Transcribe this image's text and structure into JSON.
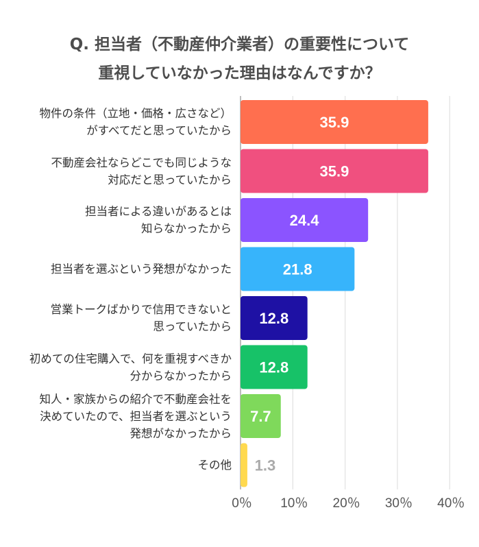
{
  "title_lines": [
    "Q. 担当者（不動産仲介業者）の重要性について",
    "重視していなかった理由はなんですか？"
  ],
  "chart_data": {
    "type": "bar",
    "orientation": "horizontal",
    "title": "Q. 担当者（不動産仲介業者）の重要性について重視していなかった理由はなんですか？",
    "categories": [
      [
        "物件の条件（立地・価格・広さなど）",
        "がすべてだと思っていたから"
      ],
      [
        "不動産会社ならどこでも同じような",
        "対応だと思っていたから"
      ],
      [
        "担当者による違いがあるとは",
        "知らなかったから"
      ],
      [
        "担当者を選ぶという発想がなかった"
      ],
      [
        "営業トークばかりで信用できないと",
        "思っていたから"
      ],
      [
        "初めての住宅購入で、何を重視すべきか",
        "分からなかったから"
      ],
      [
        "知人・家族からの紹介で不動産会社を",
        "決めていたので、担当者を選ぶという",
        "発想がなかったから"
      ],
      [
        "その他"
      ]
    ],
    "values": [
      35.9,
      35.9,
      24.4,
      21.8,
      12.8,
      12.8,
      7.7,
      1.3
    ],
    "value_labels": [
      "35.9",
      "35.9",
      "24.4",
      "21.8",
      "12.8",
      "12.8",
      "7.7",
      "1.3"
    ],
    "colors": [
      "#ff6f4f",
      "#f0507f",
      "#8b54ff",
      "#37b4fb",
      "#1e11a4",
      "#17c268",
      "#7fd95b",
      "#ffd94f"
    ],
    "xlim": [
      0,
      40
    ],
    "ticks": [
      0,
      10,
      20,
      30,
      40
    ],
    "tick_labels": [
      "0％",
      "10％",
      "20％",
      "30％",
      "40％"
    ],
    "grid": true,
    "xlabel": "",
    "ylabel": ""
  }
}
